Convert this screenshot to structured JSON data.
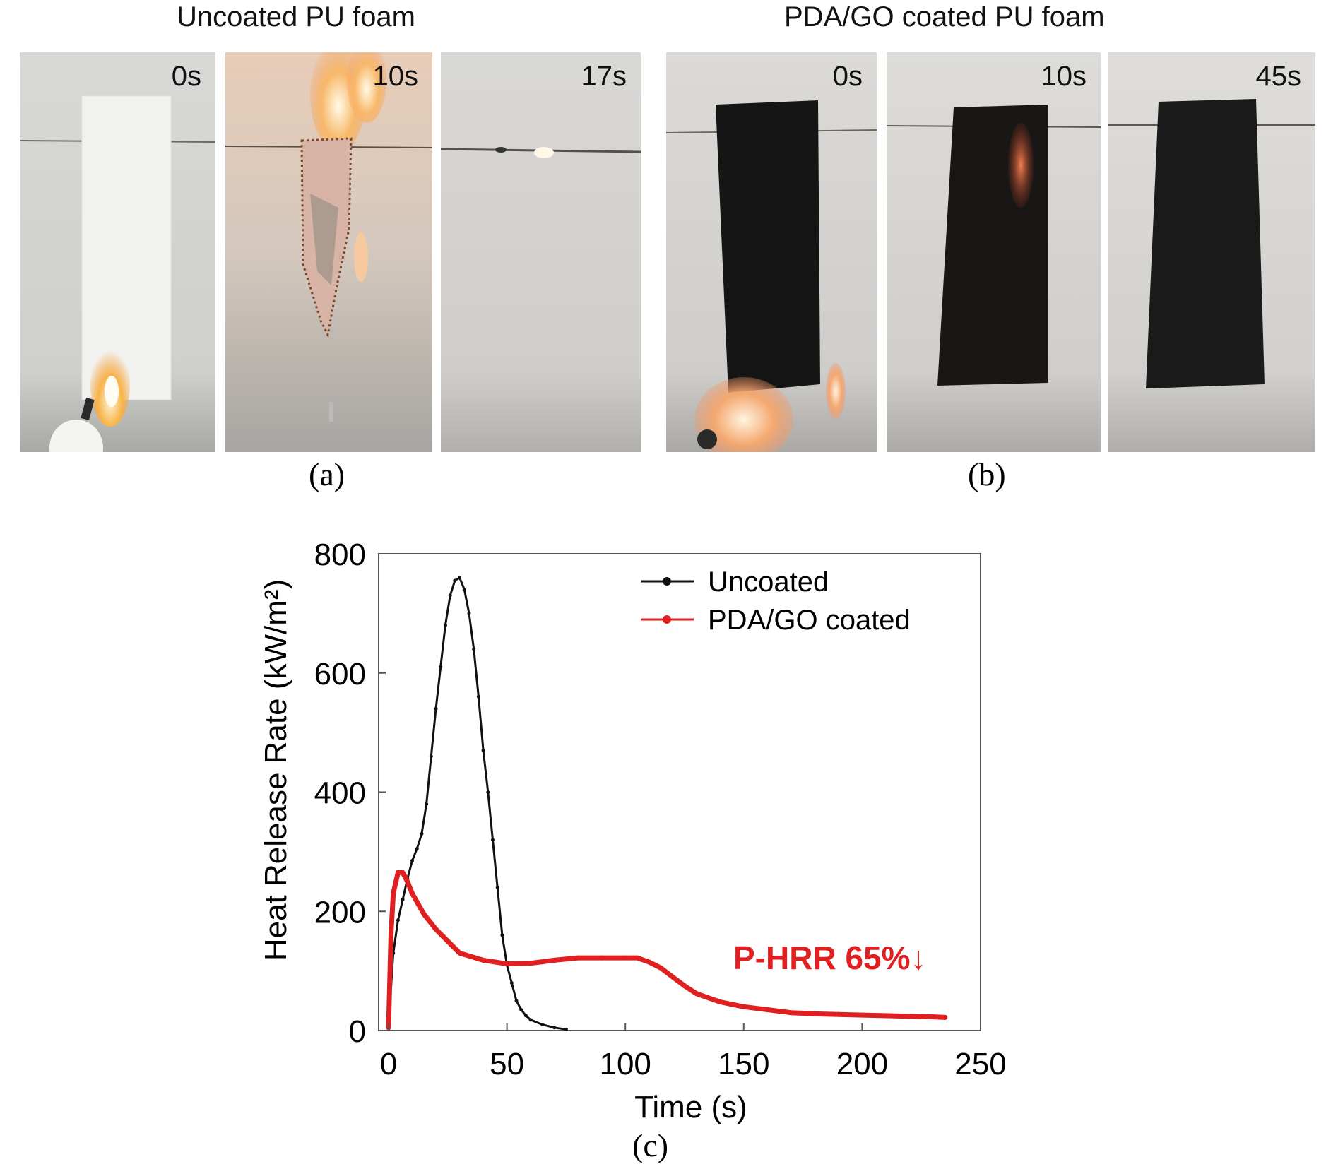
{
  "figure": {
    "group_a_title": "Uncoated PU foam",
    "group_b_title": "PDA/GO coated PU foam",
    "panels_a": [
      {
        "time": "0s"
      },
      {
        "time": "10s"
      },
      {
        "time": "17s"
      }
    ],
    "panels_b": [
      {
        "time": "0s"
      },
      {
        "time": "10s"
      },
      {
        "time": "45s"
      }
    ],
    "caption_a": "(a)",
    "caption_b": "(b)",
    "caption_c": "(c)"
  },
  "colors": {
    "uncoated": "#111111",
    "coated": "#e02020",
    "annotation": "#e02020"
  },
  "chart_data": {
    "type": "line",
    "title": "",
    "xlabel": "Time (s)",
    "ylabel": "Heat Release Rate (kW/m²)",
    "xlim": [
      0,
      250
    ],
    "ylim": [
      0,
      800
    ],
    "xticks": [
      0,
      50,
      100,
      150,
      200,
      250
    ],
    "yticks": [
      0,
      200,
      400,
      600,
      800
    ],
    "grid": false,
    "legend_position": "top-right",
    "annotation": "P-HRR 65%↓",
    "series": [
      {
        "name": "Uncoated",
        "color": "#111111",
        "x": [
          0,
          2,
          4,
          6,
          8,
          10,
          12,
          14,
          16,
          18,
          20,
          22,
          24,
          26,
          28,
          30,
          32,
          34,
          36,
          38,
          40,
          42,
          44,
          46,
          48,
          50,
          52,
          54,
          56,
          58,
          60,
          65,
          70,
          75
        ],
        "y": [
          10,
          130,
          185,
          220,
          255,
          285,
          305,
          330,
          380,
          460,
          540,
          610,
          680,
          730,
          755,
          760,
          740,
          700,
          640,
          560,
          470,
          400,
          320,
          240,
          160,
          110,
          80,
          50,
          35,
          25,
          18,
          10,
          5,
          2
        ]
      },
      {
        "name": "PDA/GO coated",
        "color": "#e02020",
        "x": [
          0,
          1,
          2,
          4,
          6,
          8,
          10,
          15,
          20,
          25,
          30,
          40,
          50,
          60,
          70,
          80,
          90,
          100,
          105,
          110,
          115,
          120,
          125,
          130,
          140,
          150,
          160,
          170,
          180,
          190,
          200,
          210,
          220,
          230,
          235
        ],
        "y": [
          5,
          160,
          230,
          265,
          265,
          250,
          230,
          195,
          170,
          150,
          130,
          118,
          112,
          113,
          118,
          122,
          122,
          122,
          122,
          115,
          105,
          90,
          75,
          62,
          48,
          40,
          35,
          30,
          28,
          27,
          26,
          25,
          24,
          23,
          22
        ]
      }
    ]
  }
}
